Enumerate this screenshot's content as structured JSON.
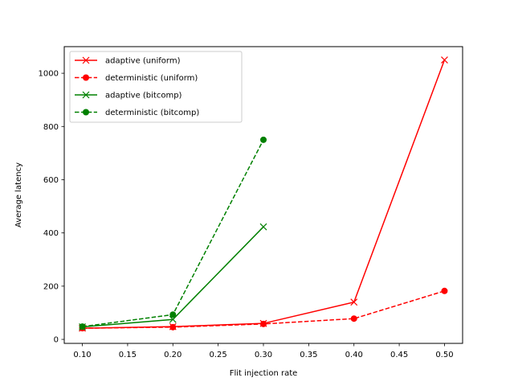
{
  "chart_data": {
    "type": "line",
    "title": "",
    "xlabel": "Flit injection rate",
    "ylabel": "Average latency",
    "xlim": [
      0.08,
      0.52
    ],
    "ylim": [
      -15,
      1100
    ],
    "xticks": [
      0.1,
      0.15,
      0.2,
      0.25,
      0.3,
      0.35,
      0.4,
      0.45,
      0.5
    ],
    "xtick_labels": [
      "0.10",
      "0.15",
      "0.20",
      "0.25",
      "0.30",
      "0.35",
      "0.40",
      "0.45",
      "0.50"
    ],
    "yticks": [
      0,
      200,
      400,
      600,
      800,
      1000
    ],
    "ytick_labels": [
      "0",
      "200",
      "400",
      "600",
      "800",
      "1000"
    ],
    "grid": false,
    "legend_position": "top-left",
    "series": [
      {
        "name": "adaptive (uniform)",
        "color": "#ff0000",
        "line_style": "solid",
        "marker": "x",
        "x": [
          0.1,
          0.2,
          0.3,
          0.4,
          0.5
        ],
        "y": [
          42,
          48,
          60,
          140,
          1050
        ]
      },
      {
        "name": "deterministic (uniform)",
        "color": "#ff0000",
        "line_style": "dashed",
        "marker": "circle",
        "x": [
          0.1,
          0.2,
          0.3,
          0.4,
          0.5
        ],
        "y": [
          42,
          46,
          58,
          78,
          182
        ]
      },
      {
        "name": "adaptive (bitcomp)",
        "color": "#008000",
        "line_style": "solid",
        "marker": "x",
        "x": [
          0.1,
          0.2,
          0.3
        ],
        "y": [
          47,
          75,
          423
        ]
      },
      {
        "name": "deterministic (bitcomp)",
        "color": "#008000",
        "line_style": "dashed",
        "marker": "circle",
        "x": [
          0.1,
          0.2,
          0.3
        ],
        "y": [
          48,
          93,
          750
        ]
      }
    ]
  }
}
